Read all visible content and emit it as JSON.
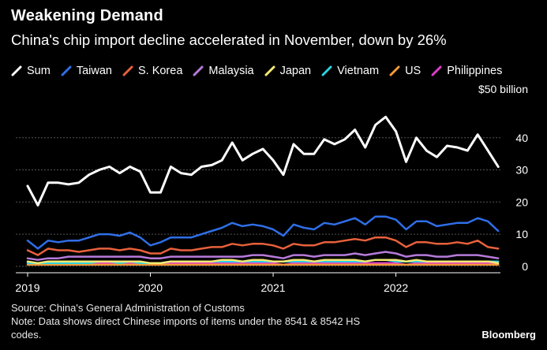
{
  "header": {
    "title": "Weakening Demand",
    "subtitle": "China's chip import decline accelerated in November, down by 26%"
  },
  "footer": {
    "source": "Source: China's General Administration of Customs",
    "note_line1": "Note: Data shows direct Chinese imports of items under the 8541 & 8542 HS",
    "note_line2": "codes.",
    "brand": "Bloomberg"
  },
  "colors": {
    "background": "#000000",
    "grid": "#555555",
    "Sum": "#ffffff",
    "Taiwan": "#2f6fe8",
    "S. Korea": "#e8613c",
    "Malaysia": "#b77bdc",
    "Japan": "#f6eb74",
    "Vietnam": "#2ed1e0",
    "US": "#f29a3a",
    "Philippines": "#de3fc8"
  },
  "chart_data": {
    "type": "line",
    "x_start": "2019-01",
    "x_end": "2022-11",
    "x_labels": [
      "2019",
      "2020",
      "2021",
      "2022"
    ],
    "unit_label": "$50 billion",
    "y_ticks": [
      0,
      10,
      20,
      30,
      40
    ],
    "ylim": [
      -2,
      50
    ],
    "grid": true,
    "legend_position": "top",
    "series": [
      {
        "name": "Sum",
        "values": [
          25,
          19,
          26,
          26,
          25.5,
          26,
          28.5,
          30,
          31,
          29,
          31,
          29.5,
          23,
          23,
          31,
          29,
          28.5,
          31,
          31.5,
          33,
          38.5,
          33,
          35,
          36.5,
          33,
          28.5,
          38,
          35,
          35,
          39.5,
          38,
          39.5,
          42.5,
          37,
          44,
          46.5,
          42,
          32.5,
          40,
          36,
          34,
          37.5,
          37,
          36,
          41,
          36,
          31
        ]
      },
      {
        "name": "Taiwan",
        "values": [
          8,
          5.5,
          8,
          7.5,
          8,
          8,
          9,
          10,
          10,
          9.5,
          10.5,
          9,
          6.5,
          7.5,
          9,
          9,
          9,
          10,
          11,
          12,
          13.5,
          12.5,
          13,
          12.5,
          11.5,
          9.5,
          13,
          12,
          11.5,
          13.5,
          13,
          14,
          15,
          13,
          15.5,
          15.5,
          14.5,
          11.5,
          14,
          14,
          12.5,
          13,
          13.5,
          13.5,
          15,
          14,
          11
        ]
      },
      {
        "name": "S. Korea",
        "values": [
          5,
          3.5,
          5.5,
          5,
          5,
          4.5,
          5,
          5.5,
          5.5,
          5,
          5.5,
          5,
          4,
          4,
          5.5,
          5,
          5,
          5.5,
          6,
          6,
          7,
          6.5,
          7,
          7,
          6.5,
          5.5,
          7,
          6.5,
          6.5,
          7.5,
          7.5,
          8,
          8.5,
          8,
          9,
          9,
          8,
          6,
          7.5,
          7.5,
          7,
          7,
          7.5,
          7,
          8,
          6,
          5.5
        ]
      },
      {
        "name": "Malaysia",
        "values": [
          2.5,
          2,
          2.5,
          2.5,
          3,
          3,
          3,
          3,
          3,
          3,
          3,
          3,
          2.5,
          2.5,
          3,
          3,
          3,
          3,
          3,
          3,
          3,
          3,
          3.5,
          3.5,
          3,
          2.5,
          3.5,
          3.5,
          3,
          3.5,
          3.5,
          3.5,
          4,
          3.5,
          4,
          4.5,
          4,
          3,
          3.5,
          3.5,
          3,
          3,
          3.5,
          3.5,
          3.5,
          3,
          2.5
        ]
      },
      {
        "name": "Japan",
        "values": [
          1.5,
          1,
          1.5,
          1.5,
          1.5,
          1.5,
          1.5,
          1.5,
          1.5,
          1.5,
          1.5,
          1.5,
          1,
          1,
          1.5,
          1.5,
          1.5,
          1.5,
          1.5,
          2,
          2,
          1.5,
          2,
          2,
          1.5,
          1.5,
          2,
          2,
          1.5,
          2,
          2,
          2,
          2,
          1.5,
          2,
          2,
          2,
          1.5,
          2,
          1.5,
          1.5,
          1.5,
          1.5,
          1.5,
          1.5,
          1.5,
          1
        ]
      },
      {
        "name": "Vietnam",
        "values": [
          1,
          1,
          1,
          1,
          1,
          1,
          1,
          1.5,
          1.5,
          1,
          1.5,
          1,
          1,
          1,
          1.5,
          1.5,
          1.5,
          1.5,
          1.5,
          1.5,
          1.5,
          1.5,
          1.5,
          1.5,
          1.5,
          1.5,
          1.5,
          1.5,
          1.5,
          1.5,
          1.5,
          1.5,
          1.5,
          1.5,
          2,
          2,
          1.5,
          1.5,
          1.5,
          1.5,
          1.5,
          1.5,
          1.5,
          1.5,
          1.5,
          1.5,
          1.5
        ]
      },
      {
        "name": "US",
        "values": [
          0.5,
          0.5,
          0.5,
          0.5,
          0.5,
          0.5,
          0.5,
          0.5,
          0.5,
          0.5,
          0.5,
          0.5,
          0.5,
          0.5,
          0.5,
          0.5,
          0.5,
          0.5,
          0.5,
          0.5,
          0.5,
          0.5,
          0.5,
          0.5,
          0.5,
          0.5,
          0.5,
          0.5,
          0.5,
          0.5,
          0.5,
          0.5,
          0.5,
          0.5,
          0.5,
          0.5,
          0.5,
          0.5,
          0.5,
          0.5,
          0.5,
          0.5,
          0.5,
          0.5,
          0.5,
          0.5,
          0.5
        ]
      },
      {
        "name": "Philippines",
        "values": [
          1,
          0.5,
          1,
          1,
          1,
          1,
          1,
          1,
          1,
          1,
          1,
          1,
          0.5,
          0.5,
          1,
          1,
          1,
          1,
          1,
          1,
          1,
          1,
          1,
          1,
          1,
          0.5,
          1,
          1,
          1,
          1,
          1,
          1,
          1,
          1,
          1,
          1,
          1,
          0.5,
          1,
          1,
          1,
          1,
          1,
          1,
          1,
          1,
          0.5
        ]
      }
    ]
  }
}
